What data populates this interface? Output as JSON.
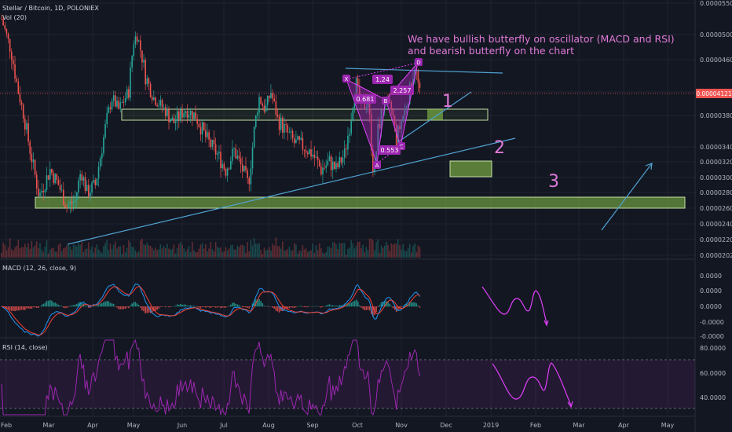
{
  "header": {
    "symbol_line": "Stellar / Bitcoin, 1D, POLONIEX",
    "volume_label": "Vol (20)",
    "macd_label": "MACD (12, 26, close, 9)",
    "rsi_label": "RSI (14, close)"
  },
  "colors": {
    "background": "#131722",
    "grid": "#1f2330",
    "up": "#26a69a",
    "down": "#ef5350",
    "pattern_fill": "#9c27b0",
    "pattern_line": "#e040fb",
    "annotation_text": "#e07ad8",
    "trendline": "#4fa3d1",
    "zone_fill": "#8bc34a",
    "macd_line": "#2196f3",
    "signal_line": "#f44336",
    "rsi_line": "#9c27b0",
    "price_tag": "#ef5350"
  },
  "annotation": {
    "line1": "We have bullish butterfly on oscillator (MACD and RSI)",
    "line2": "and bearish butterfly on the chart"
  },
  "pattern": {
    "points": [
      "X",
      "A",
      "B",
      "C",
      "D"
    ],
    "ratios": [
      "1.24",
      "0.681",
      "2.257",
      "0.553"
    ]
  },
  "wave_labels": [
    "1",
    "2",
    "3"
  ],
  "price_tag": "0.00004121",
  "chart_data": [
    {
      "type": "candlestick",
      "title": "Stellar / Bitcoin, 1D, POLONIEX",
      "x_ticks": [
        "Feb",
        "Mar",
        "Apr",
        "May",
        "Jun",
        "Jul",
        "Aug",
        "Sep",
        "Oct",
        "Nov",
        "Dec",
        "2019",
        "Feb",
        "Mar",
        "Apr",
        "May"
      ],
      "y_ticks": [
        "0.00005500",
        "0.00005000",
        "0.00004600",
        "0.00004200",
        "0.00003800",
        "0.00003400",
        "0.00003200",
        "0.00003000",
        "0.00002800",
        "0.00002600",
        "0.00002400",
        "0.00002200",
        "0.00002020"
      ],
      "y_tick_values": [
        5.5e-05,
        5e-05,
        4.6e-05,
        4.2e-05,
        3.8e-05,
        3.4e-05,
        3.2e-05,
        3e-05,
        2.8e-05,
        2.6e-05,
        2.4e-05,
        2.2e-05,
        2.02e-05
      ],
      "close_path": [
        {
          "d": 0,
          "v": 5.25e-05
        },
        {
          "d": 10,
          "v": 4.8e-05
        },
        {
          "d": 20,
          "v": 4.2e-05
        },
        {
          "d": 35,
          "v": 3.3e-05
        },
        {
          "d": 45,
          "v": 2.75e-05
        },
        {
          "d": 58,
          "v": 3.1e-05
        },
        {
          "d": 68,
          "v": 2.9e-05
        },
        {
          "d": 78,
          "v": 2.62e-05
        },
        {
          "d": 88,
          "v": 2.7e-05
        },
        {
          "d": 95,
          "v": 3.1e-05
        },
        {
          "d": 102,
          "v": 2.8e-05
        },
        {
          "d": 112,
          "v": 2.9e-05
        },
        {
          "d": 125,
          "v": 3.7e-05
        },
        {
          "d": 132,
          "v": 4.1e-05
        },
        {
          "d": 140,
          "v": 3.9e-05
        },
        {
          "d": 152,
          "v": 4.2e-05
        },
        {
          "d": 158,
          "v": 4.9e-05
        },
        {
          "d": 162,
          "v": 5e-05
        },
        {
          "d": 172,
          "v": 4.4e-05
        },
        {
          "d": 182,
          "v": 4.1e-05
        },
        {
          "d": 195,
          "v": 3.9e-05
        },
        {
          "d": 205,
          "v": 3.7e-05
        },
        {
          "d": 220,
          "v": 3.9e-05
        },
        {
          "d": 232,
          "v": 3.8e-05
        },
        {
          "d": 245,
          "v": 3.5e-05
        },
        {
          "d": 258,
          "v": 3.3e-05
        },
        {
          "d": 268,
          "v": 3.1e-05
        },
        {
          "d": 278,
          "v": 3.35e-05
        },
        {
          "d": 288,
          "v": 3.1e-05
        },
        {
          "d": 295,
          "v": 2.9e-05
        },
        {
          "d": 302,
          "v": 3.6e-05
        },
        {
          "d": 308,
          "v": 4.1e-05
        },
        {
          "d": 315,
          "v": 3.9e-05
        },
        {
          "d": 322,
          "v": 4.2e-05
        },
        {
          "d": 330,
          "v": 3.75e-05
        },
        {
          "d": 340,
          "v": 3.6e-05
        },
        {
          "d": 350,
          "v": 3.45e-05
        },
        {
          "d": 362,
          "v": 3.4e-05
        },
        {
          "d": 372,
          "v": 3.3e-05
        },
        {
          "d": 382,
          "v": 3.1e-05
        },
        {
          "d": 392,
          "v": 3.2e-05
        },
        {
          "d": 400,
          "v": 3.1e-05
        },
        {
          "d": 410,
          "v": 3.3e-05
        },
        {
          "d": 418,
          "v": 3.8e-05
        },
        {
          "d": 423,
          "v": 4.35e-05
        },
        {
          "d": 430,
          "v": 3.9e-05
        },
        {
          "d": 438,
          "v": 4.05e-05
        },
        {
          "d": 445,
          "v": 3e-05
        },
        {
          "d": 450,
          "v": 3.6e-05
        },
        {
          "d": 458,
          "v": 4.05e-05
        },
        {
          "d": 466,
          "v": 3.9e-05
        },
        {
          "d": 472,
          "v": 3.5e-05
        },
        {
          "d": 480,
          "v": 3.8e-05
        },
        {
          "d": 488,
          "v": 4.2e-05
        },
        {
          "d": 494,
          "v": 4.55e-05
        },
        {
          "d": 500,
          "v": 4.15e-05
        }
      ],
      "macd_ticks": [
        "0.0000",
        "0.0000",
        "0.0000",
        "-0.0000",
        "-0.0000"
      ],
      "rsi_ticks": [
        "80.0000",
        "60.0000",
        "40.0000"
      ],
      "rsi_bands": [
        70,
        30
      ]
    }
  ]
}
